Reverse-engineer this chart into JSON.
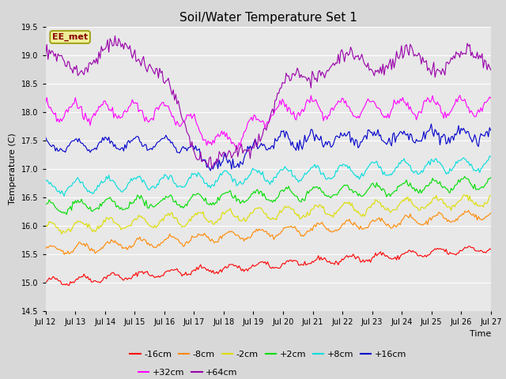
{
  "title": "Soil/Water Temperature Set 1",
  "xlabel": "Time",
  "ylabel": "Temperature (C)",
  "ylim": [
    14.5,
    19.5
  ],
  "x_tick_labels": [
    "Jul 12",
    "Jul 13",
    "Jul 14",
    "Jul 15",
    "Jul 16",
    "Jul 17",
    "Jul 18",
    "Jul 19",
    "Jul 20",
    "Jul 21",
    "Jul 22",
    "Jul 23",
    "Jul 24",
    "Jul 25",
    "Jul 26",
    "Jul 27"
  ],
  "legend_entries": [
    "-16cm",
    "-8cm",
    "-2cm",
    "+2cm",
    "+8cm",
    "+16cm",
    "+32cm",
    "+64cm"
  ],
  "legend_colors": [
    "#ff0000",
    "#ff8800",
    "#dddd00",
    "#00dd00",
    "#00dddd",
    "#0000cc",
    "#ff00ff",
    "#9900aa"
  ],
  "annotation_text": "EE_met",
  "annotation_color": "#880000",
  "annotation_bg": "#eeee99",
  "fig_bg_color": "#d8d8d8",
  "plot_bg_color": "#e8e8e8",
  "grid_color": "#ffffff",
  "n_points": 360,
  "title_fontsize": 11,
  "tick_fontsize": 7,
  "ylabel_fontsize": 8,
  "xlabel_fontsize": 8,
  "legend_fontsize": 8
}
